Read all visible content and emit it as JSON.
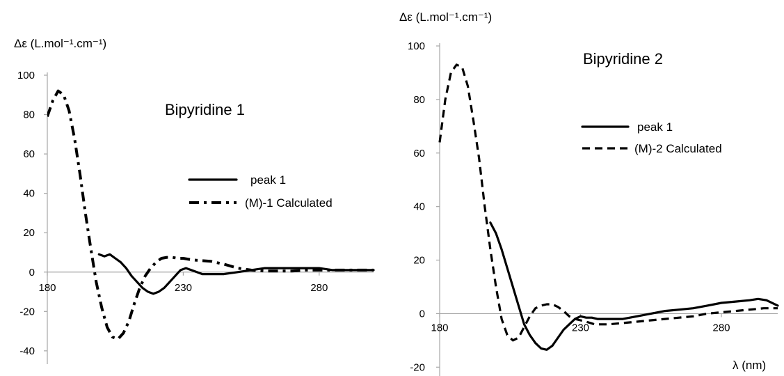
{
  "chart_data": [
    {
      "type": "line",
      "title": "Bipyridine 1",
      "ylabel": "Δε (L.mol⁻¹.cm⁻¹)",
      "xlabel": "",
      "xlim": [
        180,
        300
      ],
      "ylim": [
        -45,
        100
      ],
      "xticks": [
        180,
        230,
        280
      ],
      "yticks": [
        -40,
        -20,
        0,
        20,
        40,
        60,
        80,
        100
      ],
      "legend_position": "center-right",
      "series": [
        {
          "name": "peak 1",
          "style": "solid",
          "x": [
            199,
            201,
            203,
            205,
            207,
            209,
            211,
            213,
            215,
            217,
            219,
            221,
            223,
            225,
            227,
            229,
            231,
            233,
            235,
            237,
            239,
            241,
            245,
            250,
            255,
            260,
            265,
            270,
            275,
            280,
            285,
            290,
            295,
            300
          ],
          "y": [
            9,
            8,
            9,
            7,
            5,
            2,
            -2,
            -5,
            -8,
            -10,
            -11,
            -10,
            -8,
            -5,
            -2,
            1,
            2,
            1,
            0,
            -1,
            -1,
            -1,
            -1,
            0,
            1,
            2,
            2,
            2,
            2,
            2,
            1,
            1,
            1,
            1
          ]
        },
        {
          "name": "(M)-1 Calculated",
          "style": "dash-dot",
          "x": [
            180,
            182,
            184,
            186,
            188,
            190,
            192,
            194,
            196,
            198,
            200,
            202,
            204,
            206,
            208,
            210,
            212,
            214,
            216,
            218,
            220,
            222,
            224,
            226,
            228,
            230,
            232,
            235,
            240,
            245,
            250,
            255,
            260,
            265,
            270,
            275,
            280,
            285,
            290,
            295,
            300
          ],
          "y": [
            79,
            87,
            92,
            90,
            82,
            68,
            50,
            30,
            12,
            -5,
            -18,
            -28,
            -33,
            -34,
            -31,
            -25,
            -16,
            -8,
            -2,
            2,
            5,
            7,
            7.5,
            7.5,
            7,
            7,
            6.5,
            6,
            5.5,
            4,
            2,
            1,
            0.5,
            0.5,
            0.5,
            1,
            1,
            1,
            1,
            1,
            1
          ]
        }
      ]
    },
    {
      "type": "line",
      "title": "Bipyridine 2",
      "ylabel": "Δε (L.mol⁻¹.cm⁻¹)",
      "xlabel": "λ (nm)",
      "xlim": [
        180,
        300
      ],
      "ylim": [
        -22,
        100
      ],
      "xticks": [
        180,
        230,
        280
      ],
      "yticks": [
        -20,
        0,
        20,
        40,
        60,
        80,
        100
      ],
      "legend_position": "top-right",
      "series": [
        {
          "name": "peak 1",
          "style": "solid",
          "x": [
            198,
            200,
            202,
            204,
            206,
            208,
            210,
            212,
            214,
            216,
            218,
            220,
            222,
            224,
            226,
            228,
            230,
            232,
            234,
            236,
            238,
            240,
            245,
            250,
            255,
            260,
            265,
            270,
            275,
            280,
            285,
            290,
            293,
            296,
            300
          ],
          "y": [
            34,
            30,
            24,
            17,
            10,
            3,
            -4,
            -8,
            -11,
            -13,
            -13.5,
            -12,
            -9,
            -6,
            -4,
            -2,
            -1,
            -1.5,
            -1.5,
            -2,
            -2,
            -2,
            -2,
            -1,
            0,
            1,
            1.5,
            2,
            3,
            4,
            4.5,
            5,
            5.5,
            5,
            3
          ]
        },
        {
          "name": "(M)-2 Calculated",
          "style": "dash",
          "x": [
            180,
            182,
            184,
            186,
            188,
            190,
            192,
            194,
            196,
            198,
            200,
            202,
            204,
            206,
            208,
            210,
            212,
            214,
            216,
            218,
            220,
            222,
            224,
            226,
            228,
            230,
            232,
            235,
            240,
            245,
            250,
            255,
            260,
            265,
            270,
            275,
            280,
            285,
            290,
            295,
            300
          ],
          "y": [
            64,
            80,
            90,
            93,
            92,
            85,
            72,
            58,
            40,
            24,
            10,
            -2,
            -8,
            -10,
            -9,
            -5,
            -1,
            2,
            3,
            3.5,
            3.5,
            2.5,
            1,
            -1,
            -2,
            -2.5,
            -3,
            -4,
            -4,
            -3.5,
            -3,
            -2.5,
            -2,
            -1.5,
            -1,
            0,
            0.5,
            1,
            1.5,
            2,
            2
          ]
        }
      ]
    }
  ]
}
